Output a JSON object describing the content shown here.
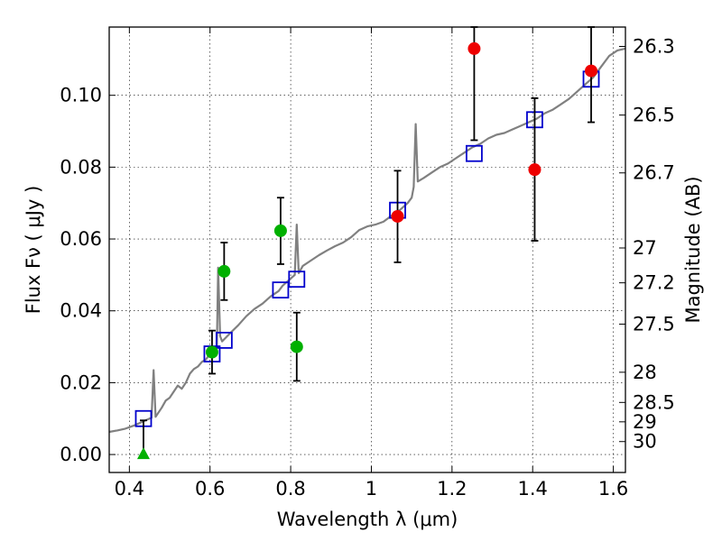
{
  "chart_data": {
    "type": "scatter",
    "title": "",
    "xlabel": "Wavelength  λ (μm)",
    "ylabel": "Flux  Fν  ( μJy )",
    "ylabel_right": "Magnitude (AB)",
    "xlim": [
      0.35,
      1.63
    ],
    "ylim": [
      -0.005,
      0.119
    ],
    "grid": true,
    "x_ticks": [
      0.4,
      0.6,
      0.8,
      1.0,
      1.2,
      1.4,
      1.6
    ],
    "x_tick_labels": [
      "0.4",
      "0.6",
      "0.8",
      "1",
      "1.2",
      "1.4",
      "1.6"
    ],
    "y_ticks": [
      0.0,
      0.02,
      0.04,
      0.06,
      0.08,
      0.1
    ],
    "y_tick_labels": [
      "0.00",
      "0.02",
      "0.04",
      "0.06",
      "0.08",
      "0.10"
    ],
    "right_ticks": [
      {
        "flux": 0.1136,
        "label": "26.3"
      },
      {
        "flux": 0.0945,
        "label": "26.5"
      },
      {
        "flux": 0.0784,
        "label": "26.7"
      },
      {
        "flux": 0.0575,
        "label": "27"
      },
      {
        "flux": 0.0478,
        "label": "27.2"
      },
      {
        "flux": 0.0363,
        "label": "27.5"
      },
      {
        "flux": 0.0229,
        "label": "28"
      },
      {
        "flux": 0.0145,
        "label": "28.5"
      },
      {
        "flux": 0.0091,
        "label": "29"
      },
      {
        "flux": 0.0036,
        "label": "30"
      }
    ],
    "series": [
      {
        "kind": "model-spectrum",
        "color": "#808080",
        "points": [
          [
            0.35,
            0.0063
          ],
          [
            0.37,
            0.0067
          ],
          [
            0.39,
            0.0072
          ],
          [
            0.41,
            0.008
          ],
          [
            0.43,
            0.009
          ],
          [
            0.45,
            0.01
          ],
          [
            0.455,
            0.0102
          ],
          [
            0.46,
            0.0235
          ],
          [
            0.465,
            0.0105
          ],
          [
            0.48,
            0.013
          ],
          [
            0.49,
            0.015
          ],
          [
            0.5,
            0.0158
          ],
          [
            0.51,
            0.0175
          ],
          [
            0.52,
            0.0192
          ],
          [
            0.53,
            0.0183
          ],
          [
            0.54,
            0.02
          ],
          [
            0.55,
            0.0225
          ],
          [
            0.56,
            0.0238
          ],
          [
            0.57,
            0.0245
          ],
          [
            0.58,
            0.0258
          ],
          [
            0.59,
            0.0265
          ],
          [
            0.6,
            0.028
          ],
          [
            0.61,
            0.029
          ],
          [
            0.617,
            0.03
          ],
          [
            0.62,
            0.052
          ],
          [
            0.625,
            0.033
          ],
          [
            0.63,
            0.0315
          ],
          [
            0.65,
            0.0338
          ],
          [
            0.67,
            0.036
          ],
          [
            0.69,
            0.0385
          ],
          [
            0.71,
            0.0405
          ],
          [
            0.73,
            0.042
          ],
          [
            0.75,
            0.044
          ],
          [
            0.77,
            0.0455
          ],
          [
            0.78,
            0.047
          ],
          [
            0.79,
            0.048
          ],
          [
            0.8,
            0.049
          ],
          [
            0.81,
            0.05
          ],
          [
            0.815,
            0.064
          ],
          [
            0.82,
            0.0505
          ],
          [
            0.83,
            0.0525
          ],
          [
            0.85,
            0.054
          ],
          [
            0.87,
            0.0555
          ],
          [
            0.89,
            0.0568
          ],
          [
            0.91,
            0.058
          ],
          [
            0.93,
            0.059
          ],
          [
            0.95,
            0.0605
          ],
          [
            0.97,
            0.0625
          ],
          [
            0.99,
            0.0635
          ],
          [
            1.01,
            0.064
          ],
          [
            1.03,
            0.0648
          ],
          [
            1.05,
            0.0665
          ],
          [
            1.07,
            0.068
          ],
          [
            1.09,
            0.07
          ],
          [
            1.1,
            0.0715
          ],
          [
            1.105,
            0.0745
          ],
          [
            1.11,
            0.092
          ],
          [
            1.115,
            0.076
          ],
          [
            1.13,
            0.077
          ],
          [
            1.15,
            0.0785
          ],
          [
            1.17,
            0.08
          ],
          [
            1.19,
            0.081
          ],
          [
            1.21,
            0.0825
          ],
          [
            1.23,
            0.084
          ],
          [
            1.25,
            0.0855
          ],
          [
            1.27,
            0.0865
          ],
          [
            1.29,
            0.088
          ],
          [
            1.31,
            0.089
          ],
          [
            1.33,
            0.0895
          ],
          [
            1.35,
            0.0905
          ],
          [
            1.37,
            0.0915
          ],
          [
            1.39,
            0.0925
          ],
          [
            1.41,
            0.0935
          ],
          [
            1.43,
            0.095
          ],
          [
            1.45,
            0.096
          ],
          [
            1.47,
            0.0975
          ],
          [
            1.49,
            0.099
          ],
          [
            1.51,
            0.101
          ],
          [
            1.53,
            0.103
          ],
          [
            1.55,
            0.105
          ],
          [
            1.57,
            0.108
          ],
          [
            1.59,
            0.111
          ],
          [
            1.61,
            0.1125
          ],
          [
            1.63,
            0.113
          ]
        ]
      },
      {
        "kind": "model-bands",
        "marker": "square",
        "color": "#0000cc",
        "points": [
          [
            0.435,
            0.01
          ],
          [
            0.605,
            0.028
          ],
          [
            0.635,
            0.0318
          ],
          [
            0.775,
            0.0458
          ],
          [
            0.815,
            0.0488
          ],
          [
            1.065,
            0.068
          ],
          [
            1.255,
            0.0838
          ],
          [
            1.405,
            0.0932
          ],
          [
            1.545,
            0.1045
          ]
        ]
      },
      {
        "kind": "observed-green",
        "marker": "circle",
        "color": "#00b000",
        "points": [
          {
            "x": 0.605,
            "y": 0.0285,
            "lo": 0.0225,
            "hi": 0.0345
          },
          {
            "x": 0.635,
            "y": 0.051,
            "lo": 0.043,
            "hi": 0.059
          },
          {
            "x": 0.775,
            "y": 0.0623,
            "lo": 0.053,
            "hi": 0.0715
          },
          {
            "x": 0.815,
            "y": 0.03,
            "lo": 0.0205,
            "hi": 0.0395
          }
        ]
      },
      {
        "kind": "observed-red",
        "marker": "circle",
        "color": "#ee0000",
        "points": [
          {
            "x": 1.065,
            "y": 0.0663,
            "lo": 0.0535,
            "hi": 0.079
          },
          {
            "x": 1.255,
            "y": 0.113,
            "lo": 0.0875,
            "hi": 0.119
          },
          {
            "x": 1.405,
            "y": 0.0793,
            "lo": 0.0595,
            "hi": 0.0992
          },
          {
            "x": 1.545,
            "y": 0.1068,
            "lo": 0.0925,
            "hi": 0.119
          }
        ]
      },
      {
        "kind": "upper-limit",
        "marker": "triangle",
        "color": "#00b000",
        "points": [
          {
            "x": 0.435,
            "y": 0.0,
            "lo": 0.0,
            "hi": 0.0095
          }
        ]
      }
    ]
  }
}
